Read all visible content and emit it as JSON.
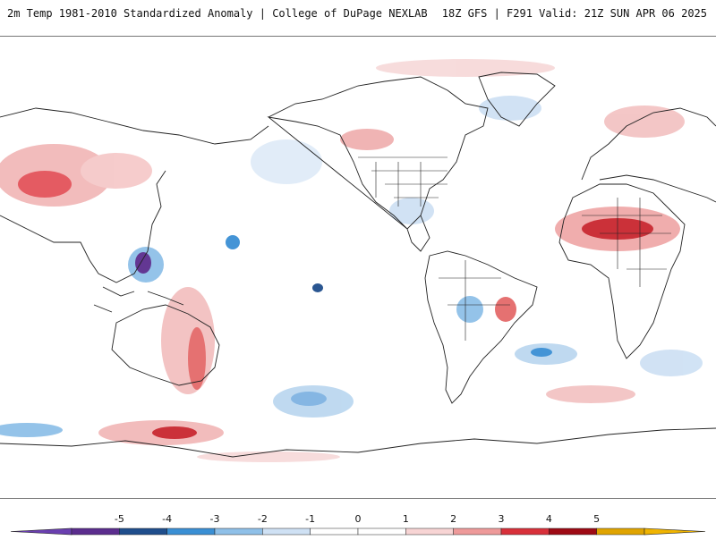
{
  "header": {
    "title_left": "2m Temp 1981-2010 Standardized Anomaly | College of DuPage NEXLAB",
    "title_right": "18Z GFS | F291 Valid: 21Z SUN APR 06 2025"
  },
  "colorbar": {
    "labels": [
      "-5",
      "-4",
      "-3",
      "-2",
      "-1",
      "0",
      "1",
      "2",
      "3",
      "4",
      "5"
    ],
    "colors": [
      "#5b2d8e",
      "#1f4e8c",
      "#3a8fd4",
      "#8fc0e8",
      "#cfe1f4",
      "#ffffff",
      "#ffffff",
      "#f7d4d4",
      "#ee9a9a",
      "#d8303a",
      "#9e0a14",
      "#e0a400"
    ],
    "extend_low_color": "#6a3fb0",
    "extend_high_color": "#f0b400"
  },
  "map": {
    "projection": "Equirectangular (Pacific-centered)",
    "land_outline_color": "#222222"
  }
}
